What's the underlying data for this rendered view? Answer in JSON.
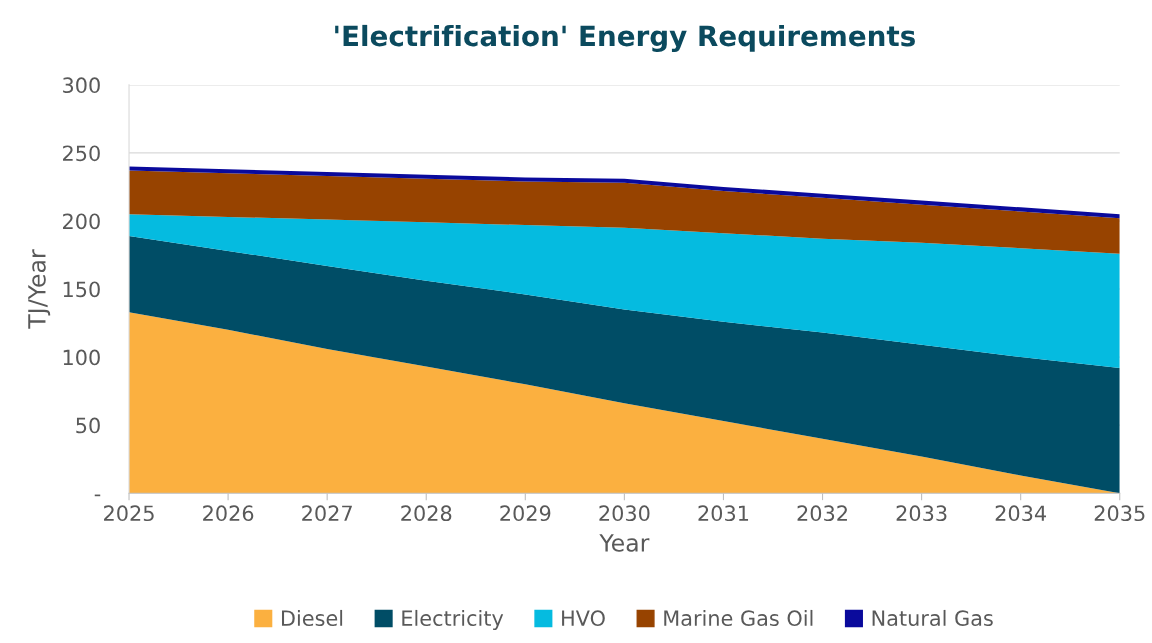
{
  "chart_data": {
    "type": "area",
    "stacked": true,
    "title": "'Electrification' Energy Requirements",
    "xlabel": "Year",
    "ylabel": "TJ/Year",
    "x": [
      2025,
      2026,
      2027,
      2028,
      2029,
      2030,
      2031,
      2032,
      2033,
      2034,
      2035
    ],
    "series": [
      {
        "name": "Diesel",
        "color": "#fbb040",
        "values": [
          133,
          120,
          106,
          93,
          80,
          66,
          53,
          40,
          27,
          13,
          0
        ]
      },
      {
        "name": "Electricity",
        "color": "#004d66",
        "values": [
          56,
          58,
          61,
          63,
          66,
          69,
          73,
          78,
          82,
          87,
          92
        ]
      },
      {
        "name": "HVO",
        "color": "#05bbe0",
        "values": [
          16,
          25,
          34,
          43,
          51,
          60,
          65,
          69,
          75,
          80,
          84
        ]
      },
      {
        "name": "Marine Gas Oil",
        "color": "#974300",
        "values": [
          32,
          32,
          32,
          32,
          32,
          33,
          31,
          30,
          28,
          27,
          26
        ]
      },
      {
        "name": "Natural Gas",
        "color": "#0a0a9c",
        "values": [
          3,
          3,
          3,
          3,
          3,
          3,
          3,
          3,
          3,
          3,
          3
        ]
      }
    ],
    "xlim": [
      2025,
      2035
    ],
    "xticks": [
      2025,
      2026,
      2027,
      2028,
      2029,
      2030,
      2031,
      2032,
      2033,
      2034,
      2035
    ],
    "ylim": [
      0,
      300
    ],
    "yticks": [
      {
        "value": 0,
        "label": "-"
      },
      50,
      100,
      150,
      200,
      250,
      300
    ],
    "grid": "y",
    "legend": "bottom"
  }
}
